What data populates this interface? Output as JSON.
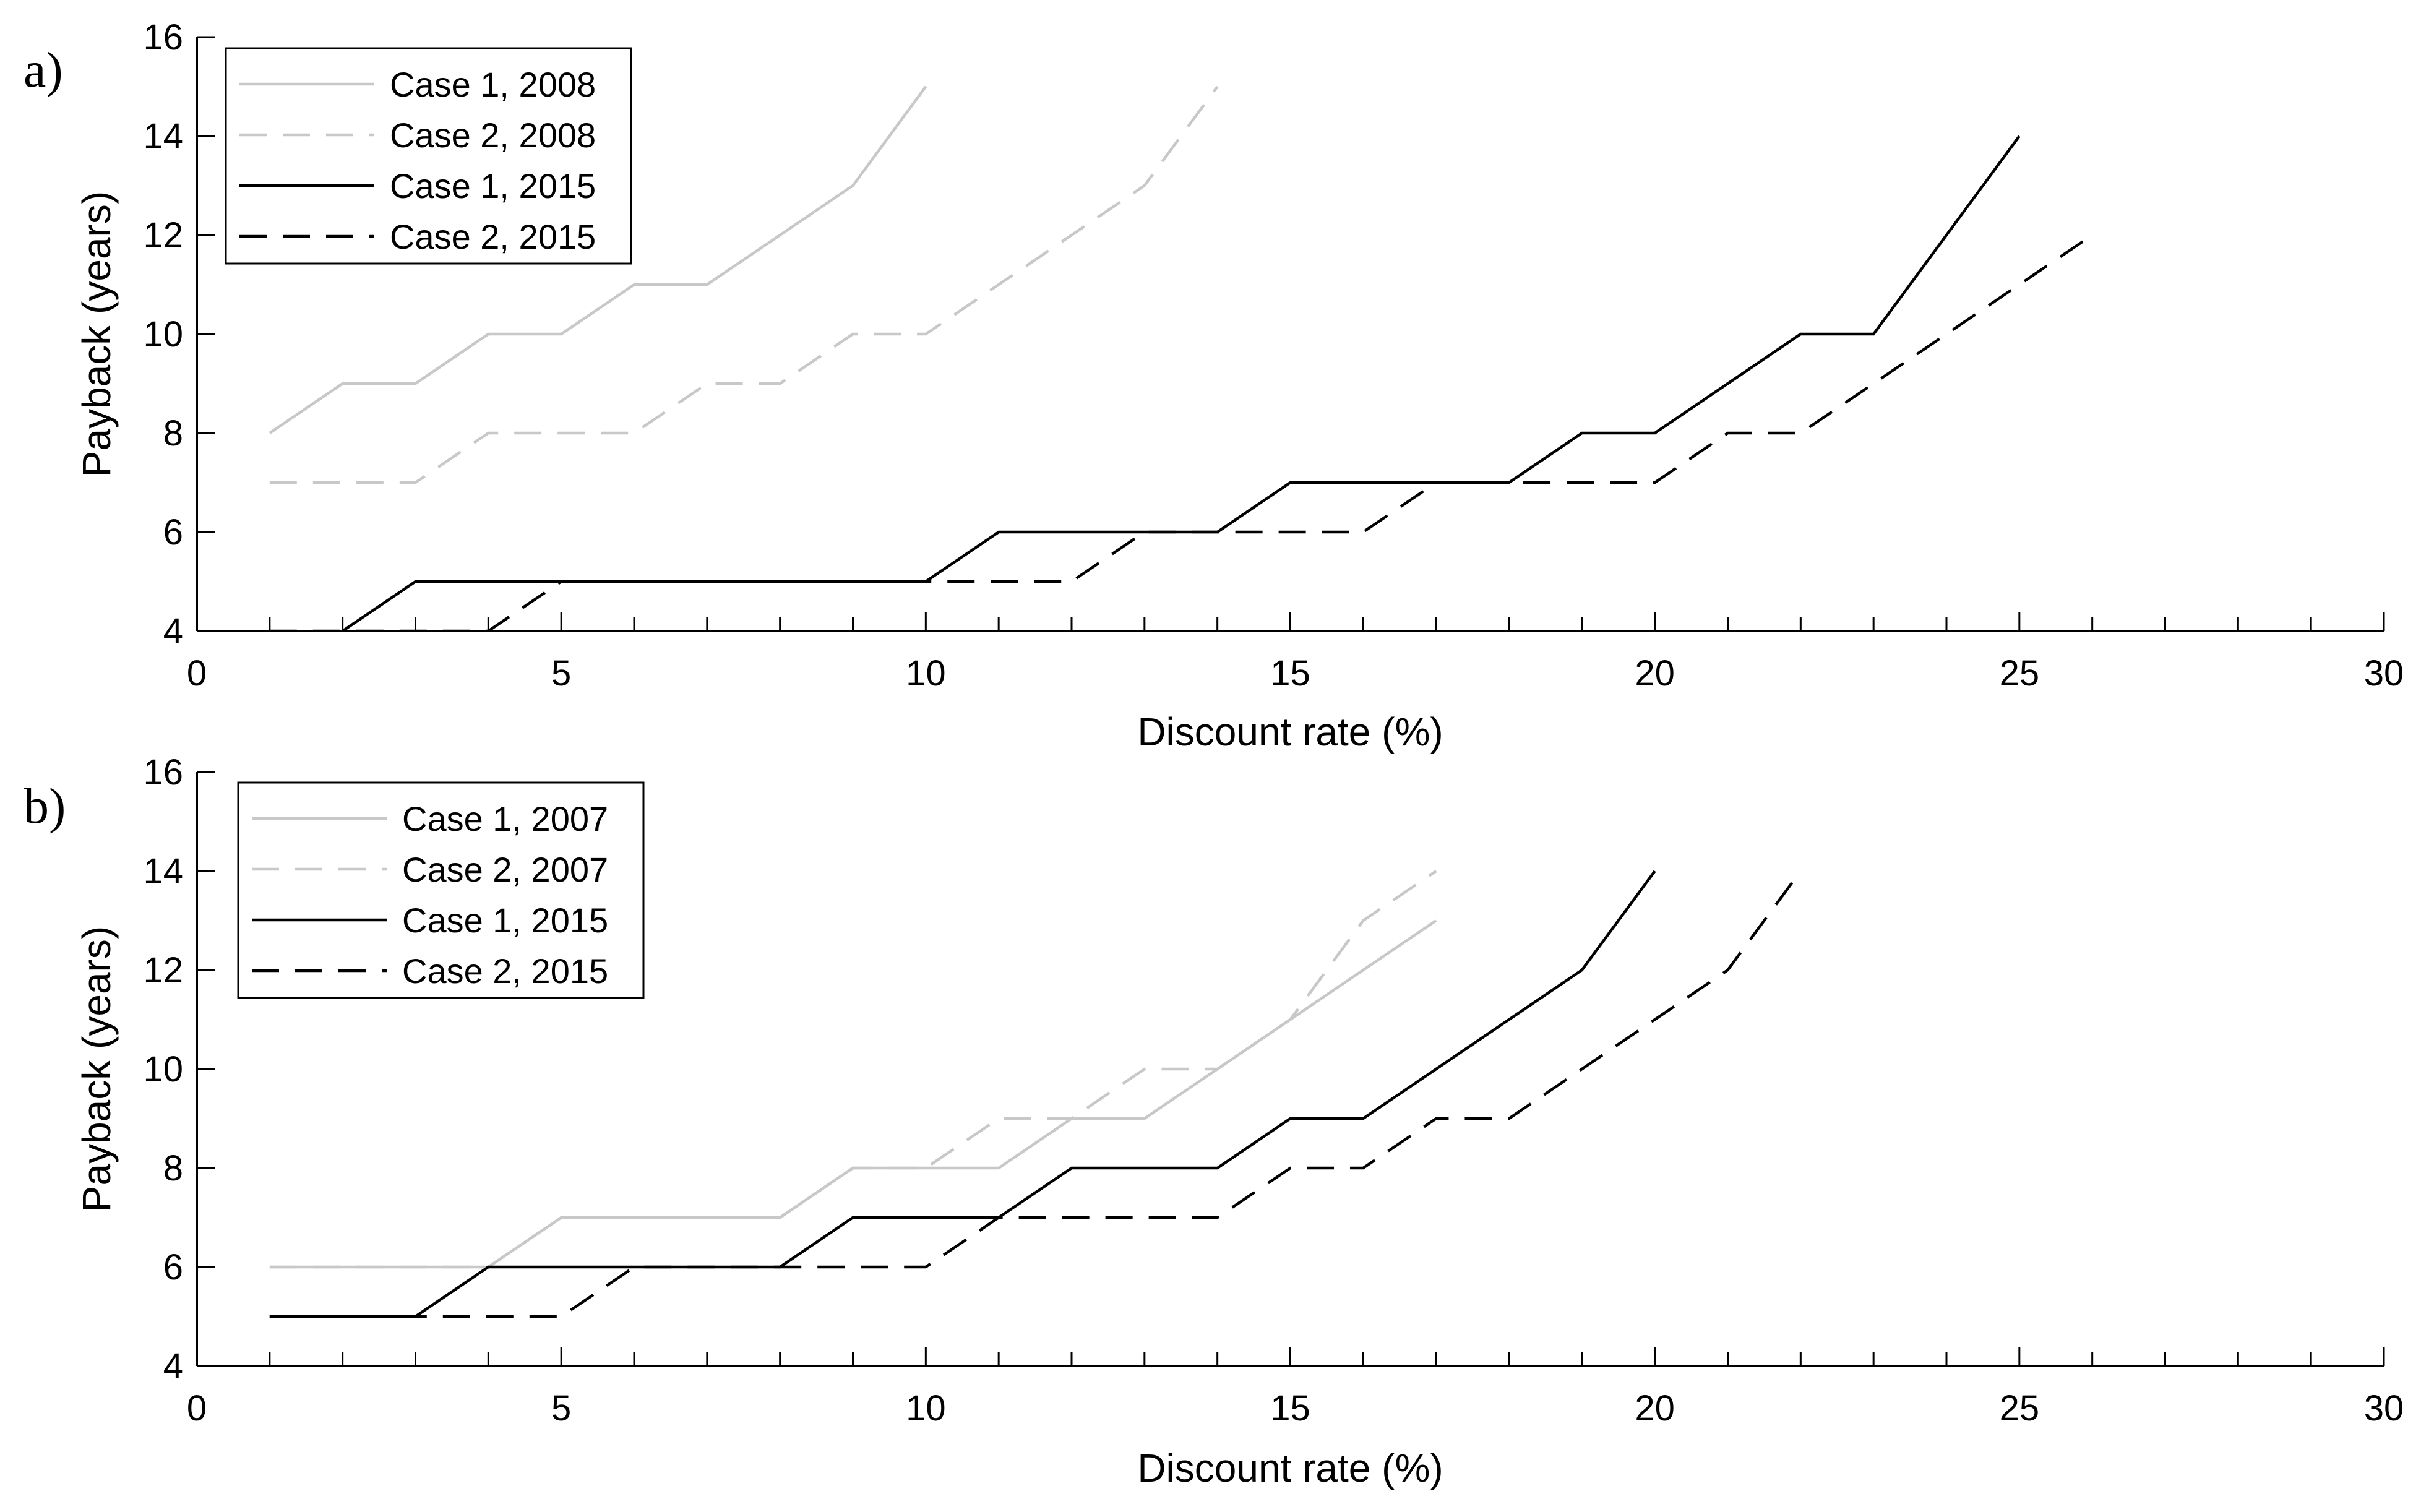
{
  "chart_data": [
    {
      "panel_label": "a)",
      "type": "line",
      "xlabel": "Discount rate (%)",
      "ylabel": "Payback (years)",
      "xlim": [
        0,
        30
      ],
      "ylim": [
        4,
        16
      ],
      "xticks": [
        0,
        5,
        10,
        15,
        20,
        25,
        30
      ],
      "yticks": [
        4,
        6,
        8,
        10,
        12,
        14,
        16
      ],
      "x_minor_step": 1,
      "legend_position": "top-left",
      "grid": false,
      "series": [
        {
          "name": "Case 1, 2008",
          "color": "#c8c8c8",
          "dash": "solid",
          "x": [
            1,
            2,
            3,
            4,
            5,
            6,
            7,
            8,
            9,
            10
          ],
          "y": [
            8,
            9,
            9,
            10,
            10,
            11,
            11,
            12,
            13,
            15
          ]
        },
        {
          "name": "Case 2, 2008",
          "color": "#c8c8c8",
          "dash": "dashed",
          "x": [
            1,
            2,
            3,
            4,
            5,
            6,
            7,
            8,
            9,
            10,
            11,
            12,
            13,
            14
          ],
          "y": [
            7,
            7,
            7,
            8,
            8,
            8,
            9,
            9,
            10,
            10,
            11,
            12,
            13,
            15
          ]
        },
        {
          "name": "Case 1, 2015",
          "color": "#000000",
          "dash": "solid",
          "x": [
            2,
            3,
            4,
            5,
            6,
            7,
            8,
            9,
            10,
            11,
            12,
            13,
            14,
            15,
            16,
            17,
            18,
            19,
            20,
            21,
            22,
            23,
            24,
            25
          ],
          "y": [
            4,
            5,
            5,
            5,
            5,
            5,
            5,
            5,
            5,
            6,
            6,
            6,
            6,
            7,
            7,
            7,
            7,
            8,
            8,
            9,
            10,
            10,
            12,
            14
          ]
        },
        {
          "name": "Case 2, 2015",
          "color": "#000000",
          "dash": "dashed",
          "x": [
            1,
            2,
            3,
            4,
            5,
            6,
            7,
            8,
            9,
            10,
            11,
            12,
            13,
            14,
            15,
            16,
            17,
            18,
            19,
            20,
            21,
            22,
            23,
            24,
            25,
            26
          ],
          "y": [
            4,
            4,
            4,
            4,
            5,
            5,
            5,
            5,
            5,
            5,
            5,
            5,
            6,
            6,
            6,
            6,
            7,
            7,
            7,
            7,
            8,
            8,
            9,
            10,
            11,
            12
          ]
        }
      ]
    },
    {
      "panel_label": "b)",
      "type": "line",
      "xlabel": "Discount rate (%)",
      "ylabel": "Payback (years)",
      "xlim": [
        0,
        30
      ],
      "ylim": [
        4,
        16
      ],
      "xticks": [
        0,
        5,
        10,
        15,
        20,
        25,
        30
      ],
      "yticks": [
        4,
        6,
        8,
        10,
        12,
        14,
        16
      ],
      "x_minor_step": 1,
      "legend_position": "top-left",
      "grid": false,
      "series": [
        {
          "name": "Case 1, 2007",
          "color": "#c8c8c8",
          "dash": "solid",
          "x": [
            1,
            2,
            3,
            4,
            5,
            6,
            7,
            8,
            9,
            10,
            11,
            12,
            13,
            14,
            15,
            16,
            17
          ],
          "y": [
            6,
            6,
            6,
            6,
            7,
            7,
            7,
            7,
            8,
            8,
            8,
            9,
            9,
            10,
            11,
            12,
            13
          ]
        },
        {
          "name": "Case 2, 2007",
          "color": "#c8c8c8",
          "dash": "dashed",
          "x": [
            1,
            2,
            3,
            4,
            5,
            6,
            7,
            8,
            9,
            10,
            11,
            12,
            13,
            14,
            15,
            16,
            17
          ],
          "y": [
            6,
            6,
            6,
            6,
            7,
            7,
            7,
            7,
            8,
            8,
            9,
            9,
            10,
            10,
            11,
            13,
            14
          ]
        },
        {
          "name": "Case 1, 2015",
          "color": "#000000",
          "dash": "solid",
          "x": [
            1,
            2,
            3,
            4,
            5,
            6,
            7,
            8,
            9,
            10,
            11,
            12,
            13,
            14,
            15,
            16,
            17,
            18,
            19,
            20
          ],
          "y": [
            5,
            5,
            5,
            6,
            6,
            6,
            6,
            6,
            7,
            7,
            7,
            8,
            8,
            8,
            9,
            9,
            10,
            11,
            12,
            14
          ]
        },
        {
          "name": "Case 2, 2015",
          "color": "#000000",
          "dash": "dashed",
          "x": [
            1,
            2,
            3,
            4,
            5,
            6,
            7,
            8,
            9,
            10,
            11,
            12,
            13,
            14,
            15,
            16,
            17,
            18,
            19,
            20,
            21,
            22
          ],
          "y": [
            5,
            5,
            5,
            5,
            5,
            6,
            6,
            6,
            6,
            6,
            7,
            7,
            7,
            7,
            8,
            8,
            9,
            9,
            10,
            11,
            12,
            14
          ]
        }
      ]
    }
  ]
}
